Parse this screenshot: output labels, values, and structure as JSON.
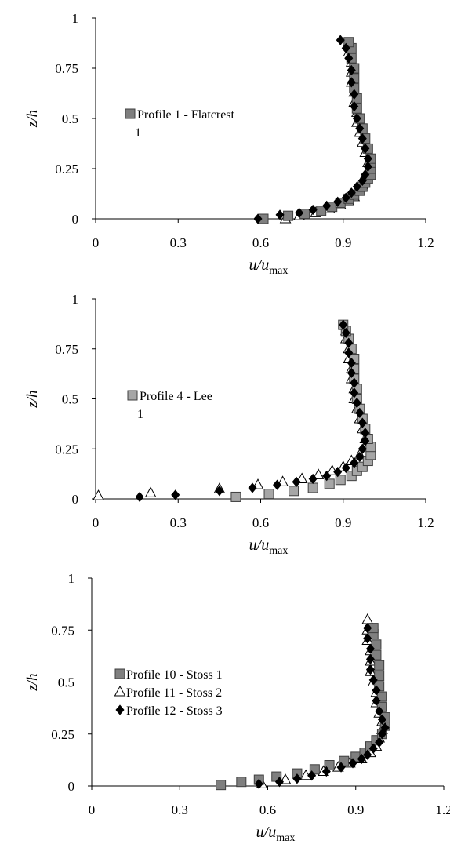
{
  "chart_data": [
    {
      "type": "scatter",
      "xlabel": {
        "main": "u/u",
        "sub": "max"
      },
      "ylabel": "z/h",
      "xlim": [
        0,
        1.2
      ],
      "ylim": [
        0,
        1
      ],
      "xticks": [
        "0",
        "0.3",
        "0.6",
        "0.9",
        "1.2"
      ],
      "yticks": [
        "0",
        "0.25",
        "0.5",
        "0.75",
        "1"
      ],
      "legend_position": "center-left",
      "series": [
        {
          "name": "Profile 1 -  Flatcrest 1",
          "marker": "square",
          "color": "#7f7f7f",
          "points": [
            [
              0.61,
              0.0
            ],
            [
              0.7,
              0.015
            ],
            [
              0.76,
              0.025
            ],
            [
              0.82,
              0.04
            ],
            [
              0.86,
              0.06
            ],
            [
              0.89,
              0.08
            ],
            [
              0.92,
              0.1
            ],
            [
              0.94,
              0.12
            ],
            [
              0.96,
              0.14
            ],
            [
              0.97,
              0.16
            ],
            [
              0.98,
              0.18
            ],
            [
              0.99,
              0.2
            ],
            [
              1.0,
              0.22
            ],
            [
              1.0,
              0.25
            ],
            [
              1.0,
              0.28
            ],
            [
              1.0,
              0.3
            ],
            [
              0.99,
              0.35
            ],
            [
              0.98,
              0.4
            ],
            [
              0.97,
              0.45
            ],
            [
              0.96,
              0.5
            ],
            [
              0.95,
              0.55
            ],
            [
              0.95,
              0.6
            ],
            [
              0.94,
              0.65
            ],
            [
              0.94,
              0.7
            ],
            [
              0.94,
              0.75
            ],
            [
              0.93,
              0.8
            ],
            [
              0.93,
              0.85
            ],
            [
              0.92,
              0.88
            ]
          ]
        },
        {
          "name": "",
          "marker": "triangle",
          "color": "#ffffff",
          "points": [
            [
              0.69,
              0.0
            ],
            [
              0.74,
              0.015
            ],
            [
              0.8,
              0.03
            ],
            [
              0.85,
              0.05
            ],
            [
              0.89,
              0.07
            ],
            [
              0.92,
              0.09
            ],
            [
              0.94,
              0.11
            ],
            [
              0.96,
              0.14
            ],
            [
              0.97,
              0.17
            ],
            [
              0.98,
              0.2
            ],
            [
              0.99,
              0.24
            ],
            [
              0.99,
              0.28
            ],
            [
              0.98,
              0.33
            ],
            [
              0.97,
              0.38
            ],
            [
              0.96,
              0.43
            ],
            [
              0.95,
              0.48
            ],
            [
              0.95,
              0.53
            ],
            [
              0.94,
              0.58
            ],
            [
              0.94,
              0.63
            ],
            [
              0.93,
              0.68
            ],
            [
              0.93,
              0.73
            ],
            [
              0.93,
              0.78
            ],
            [
              0.92,
              0.83
            ]
          ]
        },
        {
          "name": "",
          "marker": "diamond",
          "color": "#000000",
          "points": [
            [
              0.59,
              0.0
            ],
            [
              0.67,
              0.02
            ],
            [
              0.74,
              0.03
            ],
            [
              0.79,
              0.045
            ],
            [
              0.84,
              0.065
            ],
            [
              0.88,
              0.085
            ],
            [
              0.91,
              0.105
            ],
            [
              0.93,
              0.13
            ],
            [
              0.95,
              0.16
            ],
            [
              0.97,
              0.19
            ],
            [
              0.98,
              0.22
            ],
            [
              0.99,
              0.26
            ],
            [
              0.99,
              0.3
            ],
            [
              0.98,
              0.35
            ],
            [
              0.97,
              0.4
            ],
            [
              0.96,
              0.45
            ],
            [
              0.95,
              0.5
            ],
            [
              0.94,
              0.56
            ],
            [
              0.94,
              0.62
            ],
            [
              0.93,
              0.68
            ],
            [
              0.93,
              0.74
            ],
            [
              0.92,
              0.8
            ],
            [
              0.91,
              0.85
            ],
            [
              0.89,
              0.89
            ]
          ]
        }
      ]
    },
    {
      "type": "scatter",
      "xlabel": {
        "main": "u/u",
        "sub": "max"
      },
      "ylabel": "z/h",
      "xlim": [
        0,
        1.2
      ],
      "ylim": [
        0,
        1
      ],
      "xticks": [
        "0",
        "0.3",
        "0.6",
        "0.9",
        "1.2"
      ],
      "yticks": [
        "0",
        "0.25",
        "0.5",
        "0.75",
        "1"
      ],
      "legend_position": "center-left",
      "series": [
        {
          "name": "Profile 4 -  Lee 1",
          "marker": "square",
          "color": "#a6a6a6",
          "points": [
            [
              0.51,
              0.01
            ],
            [
              0.63,
              0.025
            ],
            [
              0.72,
              0.04
            ],
            [
              0.79,
              0.055
            ],
            [
              0.85,
              0.075
            ],
            [
              0.89,
              0.095
            ],
            [
              0.93,
              0.115
            ],
            [
              0.95,
              0.14
            ],
            [
              0.97,
              0.16
            ],
            [
              0.99,
              0.19
            ],
            [
              1.0,
              0.22
            ],
            [
              1.0,
              0.26
            ],
            [
              0.99,
              0.3
            ],
            [
              0.98,
              0.35
            ],
            [
              0.97,
              0.4
            ],
            [
              0.96,
              0.45
            ],
            [
              0.95,
              0.5
            ],
            [
              0.95,
              0.55
            ],
            [
              0.94,
              0.6
            ],
            [
              0.94,
              0.65
            ],
            [
              0.94,
              0.7
            ],
            [
              0.93,
              0.75
            ],
            [
              0.92,
              0.8
            ],
            [
              0.91,
              0.84
            ],
            [
              0.9,
              0.87
            ]
          ]
        },
        {
          "name": "",
          "marker": "triangle",
          "color": "#ffffff",
          "points": [
            [
              0.01,
              0.015
            ],
            [
              0.2,
              0.03
            ],
            [
              0.45,
              0.05
            ],
            [
              0.59,
              0.07
            ],
            [
              0.68,
              0.085
            ],
            [
              0.75,
              0.1
            ],
            [
              0.81,
              0.12
            ],
            [
              0.86,
              0.14
            ],
            [
              0.9,
              0.16
            ],
            [
              0.93,
              0.19
            ],
            [
              0.96,
              0.22
            ],
            [
              0.98,
              0.26
            ],
            [
              0.98,
              0.3
            ],
            [
              0.97,
              0.35
            ],
            [
              0.96,
              0.4
            ],
            [
              0.95,
              0.45
            ],
            [
              0.94,
              0.5
            ],
            [
              0.94,
              0.55
            ],
            [
              0.93,
              0.6
            ],
            [
              0.93,
              0.65
            ],
            [
              0.92,
              0.7
            ],
            [
              0.92,
              0.75
            ],
            [
              0.91,
              0.8
            ],
            [
              0.91,
              0.84
            ]
          ]
        },
        {
          "name": "",
          "marker": "diamond",
          "color": "#000000",
          "points": [
            [
              0.16,
              0.01
            ],
            [
              0.29,
              0.02
            ],
            [
              0.45,
              0.04
            ],
            [
              0.57,
              0.055
            ],
            [
              0.66,
              0.07
            ],
            [
              0.73,
              0.085
            ],
            [
              0.79,
              0.1
            ],
            [
              0.84,
              0.115
            ],
            [
              0.88,
              0.135
            ],
            [
              0.91,
              0.155
            ],
            [
              0.94,
              0.18
            ],
            [
              0.96,
              0.21
            ],
            [
              0.97,
              0.25
            ],
            [
              0.98,
              0.29
            ],
            [
              0.98,
              0.33
            ],
            [
              0.97,
              0.38
            ],
            [
              0.96,
              0.43
            ],
            [
              0.95,
              0.48
            ],
            [
              0.94,
              0.53
            ],
            [
              0.94,
              0.58
            ],
            [
              0.93,
              0.63
            ],
            [
              0.93,
              0.68
            ],
            [
              0.92,
              0.73
            ],
            [
              0.92,
              0.78
            ],
            [
              0.91,
              0.83
            ],
            [
              0.9,
              0.87
            ]
          ]
        }
      ]
    },
    {
      "type": "scatter",
      "xlabel": {
        "main": "u/u",
        "sub": "max"
      },
      "ylabel": "z/h",
      "xlim": [
        0,
        1.2
      ],
      "ylim": [
        0,
        1
      ],
      "xticks": [
        "0",
        "0.3",
        "0.6",
        "0.9",
        "1.2"
      ],
      "yticks": [
        "0",
        "0.25",
        "0.5",
        "0.75",
        "1"
      ],
      "legend_position": "center-left",
      "series": [
        {
          "name": "Profile 10 -  Stoss 1",
          "marker": "square",
          "color": "#7f7f7f",
          "points": [
            [
              0.44,
              0.005
            ],
            [
              0.51,
              0.02
            ],
            [
              0.57,
              0.03
            ],
            [
              0.63,
              0.045
            ],
            [
              0.7,
              0.06
            ],
            [
              0.76,
              0.08
            ],
            [
              0.81,
              0.1
            ],
            [
              0.86,
              0.12
            ],
            [
              0.9,
              0.14
            ],
            [
              0.93,
              0.16
            ],
            [
              0.95,
              0.19
            ],
            [
              0.97,
              0.22
            ],
            [
              0.99,
              0.25
            ],
            [
              1.0,
              0.29
            ],
            [
              1.0,
              0.33
            ],
            [
              0.99,
              0.38
            ],
            [
              0.99,
              0.43
            ],
            [
              0.98,
              0.48
            ],
            [
              0.98,
              0.53
            ],
            [
              0.98,
              0.58
            ],
            [
              0.97,
              0.63
            ],
            [
              0.97,
              0.68
            ],
            [
              0.96,
              0.73
            ],
            [
              0.96,
              0.76
            ]
          ]
        },
        {
          "name": "Profile 11 -  Stoss 2",
          "marker": "triangle",
          "color": "#ffffff",
          "points": [
            [
              0.58,
              0.01
            ],
            [
              0.66,
              0.03
            ],
            [
              0.73,
              0.05
            ],
            [
              0.79,
              0.07
            ],
            [
              0.84,
              0.09
            ],
            [
              0.88,
              0.11
            ],
            [
              0.92,
              0.13
            ],
            [
              0.95,
              0.16
            ],
            [
              0.97,
              0.19
            ],
            [
              0.98,
              0.23
            ],
            [
              0.99,
              0.27
            ],
            [
              0.99,
              0.31
            ],
            [
              0.98,
              0.35
            ],
            [
              0.97,
              0.4
            ],
            [
              0.97,
              0.45
            ],
            [
              0.96,
              0.5
            ],
            [
              0.95,
              0.55
            ],
            [
              0.95,
              0.6
            ],
            [
              0.95,
              0.65
            ],
            [
              0.94,
              0.7
            ],
            [
              0.94,
              0.75
            ],
            [
              0.94,
              0.8
            ]
          ]
        },
        {
          "name": "Profile 12 -  Stoss 3",
          "marker": "diamond",
          "color": "#000000",
          "points": [
            [
              0.57,
              0.01
            ],
            [
              0.64,
              0.02
            ],
            [
              0.7,
              0.035
            ],
            [
              0.75,
              0.05
            ],
            [
              0.8,
              0.07
            ],
            [
              0.85,
              0.09
            ],
            [
              0.89,
              0.11
            ],
            [
              0.92,
              0.13
            ],
            [
              0.94,
              0.15
            ],
            [
              0.96,
              0.18
            ],
            [
              0.98,
              0.21
            ],
            [
              0.99,
              0.25
            ],
            [
              1.0,
              0.28
            ],
            [
              0.99,
              0.32
            ],
            [
              0.98,
              0.36
            ],
            [
              0.97,
              0.41
            ],
            [
              0.97,
              0.46
            ],
            [
              0.96,
              0.51
            ],
            [
              0.95,
              0.56
            ],
            [
              0.95,
              0.61
            ],
            [
              0.95,
              0.66
            ],
            [
              0.94,
              0.71
            ],
            [
              0.94,
              0.76
            ]
          ]
        }
      ]
    }
  ]
}
